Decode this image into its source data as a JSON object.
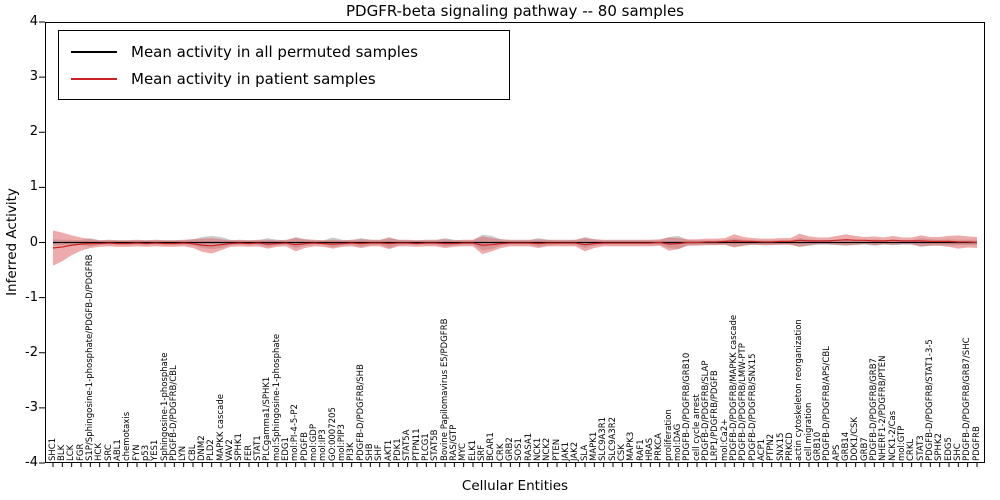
{
  "chart_data": {
    "type": "line",
    "title": "PDGFR-beta signaling pathway -- 80 samples",
    "xlabel": "Cellular Entities",
    "ylabel": "Inferred Activity",
    "ylim": [
      -4,
      4
    ],
    "yticks": [
      -4,
      -3,
      -2,
      -1,
      0,
      1,
      2,
      3,
      4
    ],
    "grid": false,
    "legend_position": "upper left",
    "n_samples": 80,
    "categories": [
      "SHC1",
      "BLK",
      "LCK",
      "FGR",
      "S1P/Sphingosine-1-phosphate/PDGFB-D/PDGFRB",
      "HCK",
      "SRC",
      "ABL1",
      "chemotaxis",
      "FYN",
      "p53",
      "YES1",
      "Sphingosine-1-phosphate",
      "PDGFB-D/PDGFRB/CBL",
      "LYN",
      "CBL",
      "DNM2",
      "PLD2",
      "MAPKK cascade",
      "VAV2",
      "SPHK1",
      "FER",
      "STAT1",
      "PLCgamma1/SPHK1",
      "mol:Sphingosine-1-phosphate",
      "EDG1",
      "mol:PI-4-5-P2",
      "PDGFB",
      "mol:GDP",
      "mol:IP3",
      "GO:0007205",
      "mol:PIP3",
      "PI3K",
      "PDGFB-D/PDGFRB/SHB",
      "SHB",
      "SHF",
      "AKT1",
      "PDK1",
      "STAT5A",
      "PTPN11",
      "PLCG1",
      "STAT5B",
      "Bovine Papilomavirus E5/PDGFRB",
      "RAS/GTP",
      "MYC",
      "ELK1",
      "SRF",
      "BCAR1",
      "CRK",
      "GRB2",
      "SOS1",
      "RASA1",
      "NCK1",
      "NCK2",
      "PTEN",
      "JAK1",
      "JAK2",
      "SLA",
      "MAPK1",
      "SLC9A3R1",
      "SLC9A3R2",
      "CSK",
      "MAPK3",
      "RAF1",
      "HRAS",
      "PRKCA",
      "proliferation",
      "mol:DAG",
      "PDGFB-D/PDGFRB/GRB10",
      "cell cycle arrest",
      "PDGFB-D/PDGFRB/SLAP",
      "LRP1/PDGFRB/PDGFB",
      "mol:Ca2+",
      "PDGFB-D/PDGFRB/MAPKK cascade",
      "PDGFB-D/PDGFRB/LMW-PTP",
      "PDGFB-D/PDGFRB/SNX15",
      "ACP1",
      "PTPN2",
      "SNX15",
      "PRKCD",
      "actin cytoskeleton reorganization",
      "cell migration",
      "GRB10",
      "PDGFB-D/PDGFRB/APS/CBL",
      "APS",
      "GRB14",
      "DOK1/CSK",
      "GRB7",
      "PDGFB-D/PDGFRB/GRB7",
      "NHERF1-2/PDGFRB/PTEN",
      "NCK1-2/Cas",
      "mol:GTP",
      "CRKL",
      "STAT3",
      "PDGFB-D/PDGFRB/STAT1-3-5",
      "SPHK2",
      "EDG5",
      "SHC",
      "PDGFB-D/PDGFRB/GRB7/SHC",
      "PDGFRB"
    ],
    "series": [
      {
        "name": "Mean activity in all permuted samples",
        "color": "#000000",
        "band_color": "#bfbfbf",
        "values": [
          0,
          0,
          0,
          0,
          0,
          0,
          0,
          0,
          0,
          0,
          0,
          0,
          0,
          0,
          0,
          0,
          0,
          0,
          0,
          0,
          0,
          0,
          0,
          0,
          0,
          0,
          0,
          0,
          0,
          0,
          0,
          0,
          0,
          0,
          0,
          0,
          0,
          0,
          0,
          0,
          0,
          0,
          0,
          0,
          0,
          0,
          0,
          0,
          0,
          0,
          0,
          0,
          0,
          0,
          0,
          0,
          0,
          0,
          0,
          0,
          0,
          0,
          0,
          0,
          0,
          0,
          0,
          0,
          0,
          0,
          0,
          0,
          0,
          0,
          0,
          0,
          0,
          0,
          0,
          0,
          0,
          0,
          0,
          0,
          0,
          0,
          0,
          0,
          0,
          0,
          0,
          0,
          0,
          0,
          0,
          0,
          0,
          0,
          0,
          0
        ],
        "band_halfwidth": [
          0.06,
          0.05,
          0.05,
          0.04,
          0.08,
          0.04,
          0.04,
          0.04,
          0.04,
          0.04,
          0.04,
          0.04,
          0.04,
          0.04,
          0.04,
          0.06,
          0.1,
          0.12,
          0.1,
          0.05,
          0.04,
          0.04,
          0.04,
          0.08,
          0.05,
          0.04,
          0.1,
          0.06,
          0.04,
          0.04,
          0.09,
          0.05,
          0.04,
          0.08,
          0.05,
          0.04,
          0.1,
          0.05,
          0.04,
          0.04,
          0.04,
          0.04,
          0.08,
          0.05,
          0.04,
          0.04,
          0.14,
          0.12,
          0.06,
          0.04,
          0.04,
          0.04,
          0.08,
          0.05,
          0.04,
          0.04,
          0.05,
          0.1,
          0.06,
          0.04,
          0.04,
          0.04,
          0.04,
          0.04,
          0.04,
          0.04,
          0.1,
          0.12,
          0.05,
          0.04,
          0.04,
          0.04,
          0.04,
          0.08,
          0.05,
          0.04,
          0.04,
          0.04,
          0.04,
          0.04,
          0.08,
          0.06,
          0.04,
          0.04,
          0.05,
          0.06,
          0.05,
          0.04,
          0.06,
          0.04,
          0.05,
          0.04,
          0.04,
          0.08,
          0.06,
          0.05,
          0.06,
          0.05,
          0.05,
          0.05
        ]
      },
      {
        "name": "Mean activity in patient samples",
        "color": "#cc2222",
        "band_color": "#e06666",
        "values": [
          -0.1,
          -0.08,
          -0.05,
          -0.03,
          -0.02,
          -0.02,
          -0.01,
          -0.02,
          -0.02,
          -0.01,
          -0.02,
          -0.01,
          -0.02,
          -0.02,
          -0.01,
          -0.02,
          -0.05,
          -0.06,
          -0.04,
          -0.02,
          -0.01,
          -0.02,
          -0.01,
          -0.03,
          -0.02,
          -0.01,
          -0.04,
          -0.02,
          -0.01,
          -0.02,
          -0.03,
          -0.02,
          -0.01,
          -0.02,
          -0.01,
          -0.01,
          -0.02,
          -0.01,
          -0.01,
          -0.02,
          -0.01,
          -0.01,
          -0.02,
          -0.02,
          -0.01,
          -0.01,
          -0.05,
          -0.04,
          -0.02,
          -0.01,
          -0.01,
          -0.01,
          -0.02,
          -0.01,
          -0.01,
          -0.01,
          -0.01,
          -0.04,
          -0.02,
          -0.01,
          -0.01,
          -0.01,
          -0.01,
          -0.01,
          -0.01,
          0.0,
          -0.03,
          -0.02,
          0.0,
          0.0,
          0.01,
          0.01,
          0.02,
          0.03,
          0.02,
          0.02,
          0.01,
          0.01,
          0.02,
          0.02,
          0.04,
          0.03,
          0.03,
          0.03,
          0.04,
          0.05,
          0.04,
          0.04,
          0.03,
          0.03,
          0.04,
          0.03,
          0.03,
          0.03,
          0.02,
          0.02,
          0.02,
          0.01,
          0.01,
          0.0
        ],
        "band_halfwidth": [
          0.32,
          0.26,
          0.18,
          0.12,
          0.08,
          0.06,
          0.06,
          0.06,
          0.06,
          0.06,
          0.06,
          0.06,
          0.06,
          0.06,
          0.06,
          0.08,
          0.12,
          0.14,
          0.1,
          0.06,
          0.06,
          0.06,
          0.06,
          0.08,
          0.06,
          0.06,
          0.12,
          0.08,
          0.06,
          0.06,
          0.08,
          0.06,
          0.06,
          0.08,
          0.06,
          0.06,
          0.1,
          0.06,
          0.06,
          0.06,
          0.06,
          0.06,
          0.08,
          0.06,
          0.06,
          0.06,
          0.16,
          0.12,
          0.08,
          0.06,
          0.06,
          0.06,
          0.08,
          0.06,
          0.06,
          0.06,
          0.06,
          0.12,
          0.08,
          0.06,
          0.06,
          0.06,
          0.06,
          0.06,
          0.06,
          0.06,
          0.12,
          0.1,
          0.06,
          0.06,
          0.06,
          0.06,
          0.06,
          0.12,
          0.08,
          0.06,
          0.06,
          0.06,
          0.06,
          0.06,
          0.12,
          0.08,
          0.06,
          0.06,
          0.08,
          0.1,
          0.08,
          0.06,
          0.08,
          0.06,
          0.08,
          0.06,
          0.06,
          0.1,
          0.08,
          0.08,
          0.1,
          0.12,
          0.1,
          0.1
        ]
      }
    ]
  },
  "colors": {
    "axis": "#000000",
    "background": "#ffffff",
    "permuted_line": "#000000",
    "permuted_band": "#bfbfbf",
    "patient_line": "#cc2222",
    "patient_band": "#e06666"
  }
}
